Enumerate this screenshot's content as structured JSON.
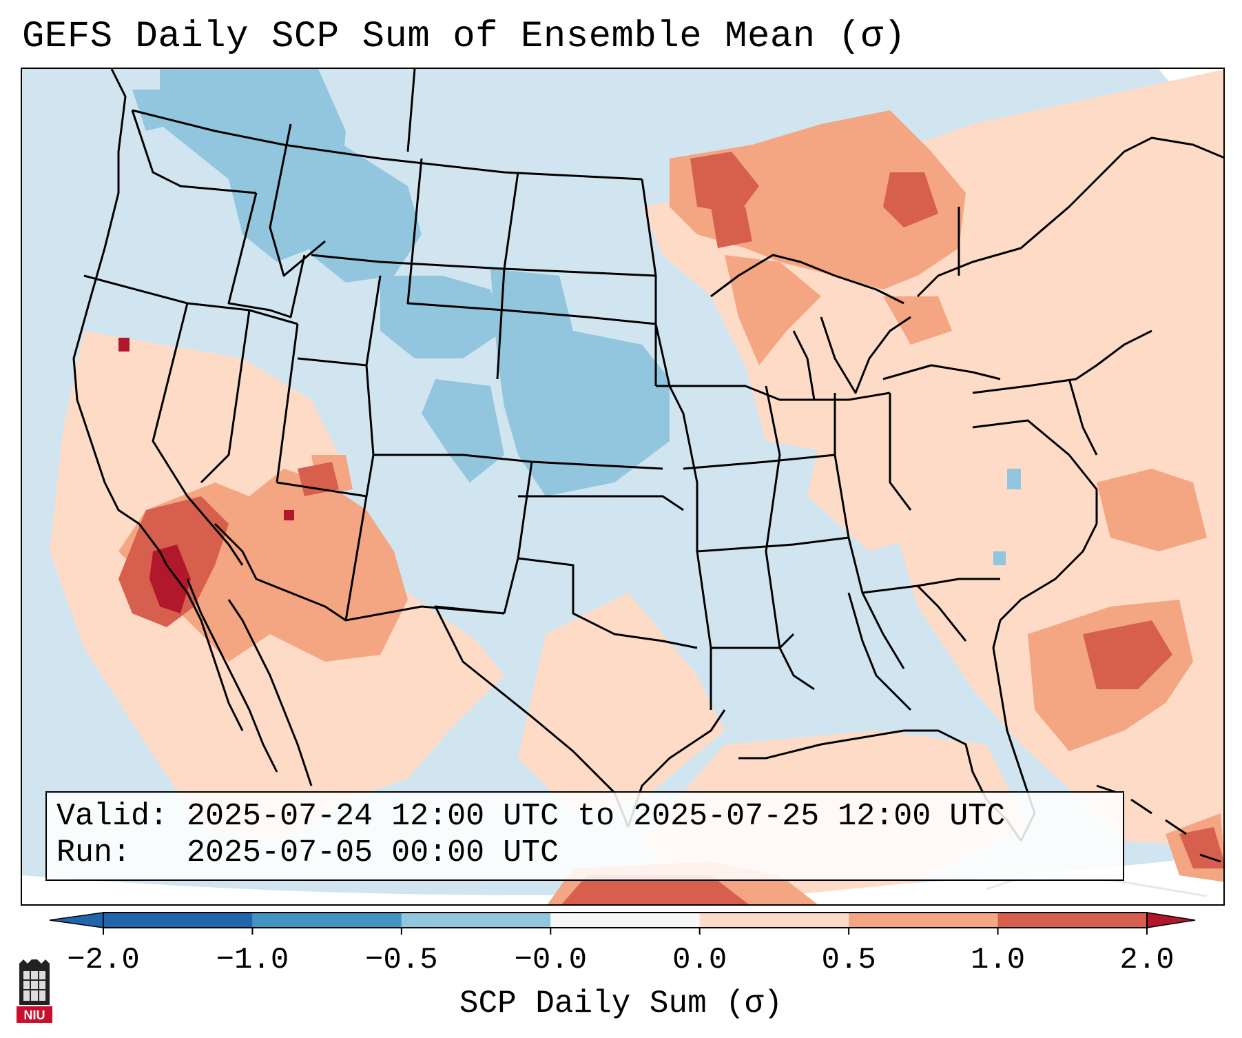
{
  "title": "GEFS Daily SCP Sum of Ensemble Mean (σ)",
  "info": {
    "valid_label": "Valid:",
    "valid_value": "2025-07-24 12:00 UTC to 2025-07-25 12:00 UTC",
    "run_label": "Run:",
    "run_value": "2025-07-05 00:00 UTC"
  },
  "colorbar": {
    "label": "SCP Daily Sum (σ)",
    "ticks": [
      "−2.0",
      "−1.0",
      "−0.5",
      "−0.0",
      "0.0",
      "0.5",
      "1.0",
      "2.0"
    ],
    "colors": [
      "#2166ac",
      "#4393c3",
      "#92c5de",
      "#d1e5f0",
      "#fddbc7",
      "#f4a582",
      "#d6604d",
      "#b2182b"
    ]
  },
  "map": {
    "background_color": "#d1e5f0",
    "boundary_color": "#000000"
  },
  "logo": {
    "text": "NIU",
    "color": "#c8102e"
  }
}
